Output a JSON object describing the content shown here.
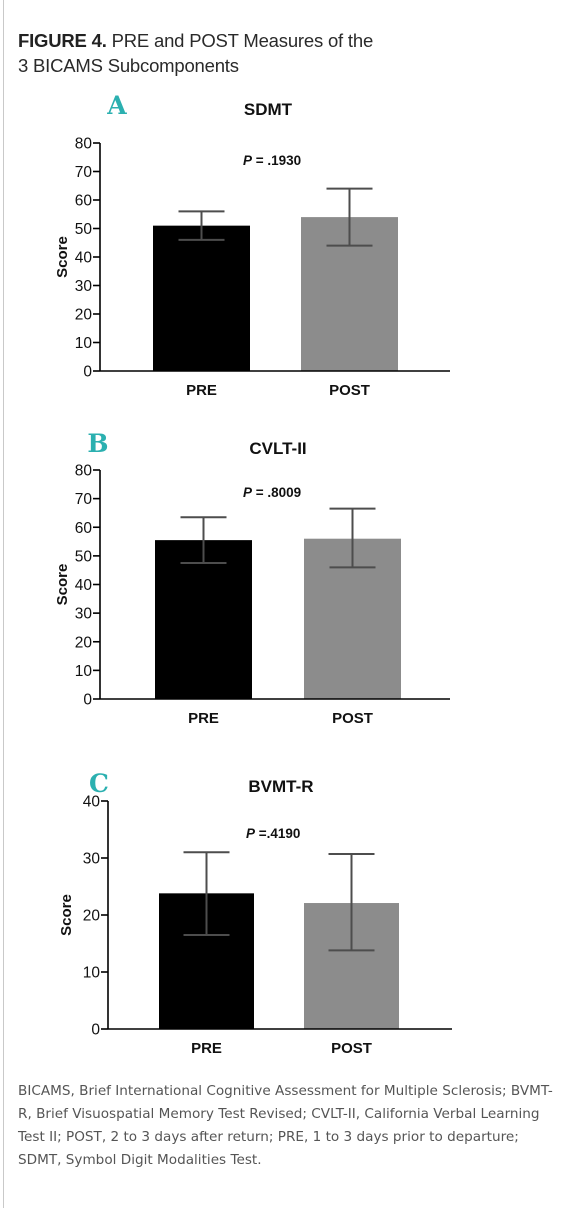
{
  "figure": {
    "label": "FIGURE 4.",
    "title_line1": "PRE and POST Measures of the",
    "title_line2": "3 BICAMS Subcomponents"
  },
  "colors": {
    "pre_bar": "#000000",
    "post_bar": "#8c8c8c",
    "error_bar": "#4d4d4d",
    "panel_letter": "#2bb0b0",
    "axis": "#000000"
  },
  "chart_data": [
    {
      "type": "bar",
      "panel": "A",
      "title": "SDMT",
      "annotation_p": "P",
      "annotation_value": " = .1930",
      "categories": [
        "PRE",
        "POST"
      ],
      "values": [
        51,
        54
      ],
      "error_upper": [
        56,
        64
      ],
      "error_lower": [
        46,
        44
      ],
      "ylabel": "Score",
      "xlabel": "",
      "ylim": [
        0,
        80
      ],
      "yticks": [
        0,
        10,
        20,
        30,
        40,
        50,
        60,
        70,
        80
      ],
      "grid": false
    },
    {
      "type": "bar",
      "panel": "B",
      "title": "CVLT-II",
      "annotation_p": "P",
      "annotation_value": " = .8009",
      "categories": [
        "PRE",
        "POST"
      ],
      "values": [
        55.5,
        56
      ],
      "error_upper": [
        63.5,
        66.5
      ],
      "error_lower": [
        47.5,
        46
      ],
      "ylabel": "Score",
      "xlabel": "",
      "ylim": [
        0,
        80
      ],
      "yticks": [
        0,
        10,
        20,
        30,
        40,
        50,
        60,
        70,
        80
      ],
      "grid": false
    },
    {
      "type": "bar",
      "panel": "C",
      "title": "BVMT-R",
      "annotation_p": "P",
      "annotation_value": " =.4190",
      "categories": [
        "PRE",
        "POST"
      ],
      "values": [
        23.8,
        22.1
      ],
      "error_upper": [
        31,
        30.7
      ],
      "error_lower": [
        16.5,
        13.8
      ],
      "ylabel": "Score",
      "xlabel": "",
      "ylim": [
        0,
        40
      ],
      "yticks": [
        0,
        10,
        20,
        30,
        40
      ],
      "grid": false
    }
  ],
  "caption": "BICAMS, Brief International Cognitive Assessment for Multiple Sclerosis; BVMT-R, Brief Visuospatial Memory Test Revised; CVLT-II, California Verbal Learning Test II; POST, 2 to 3 days after return; PRE, 1 to 3 days prior to departure; SDMT, Symbol Digit Modalities Test."
}
